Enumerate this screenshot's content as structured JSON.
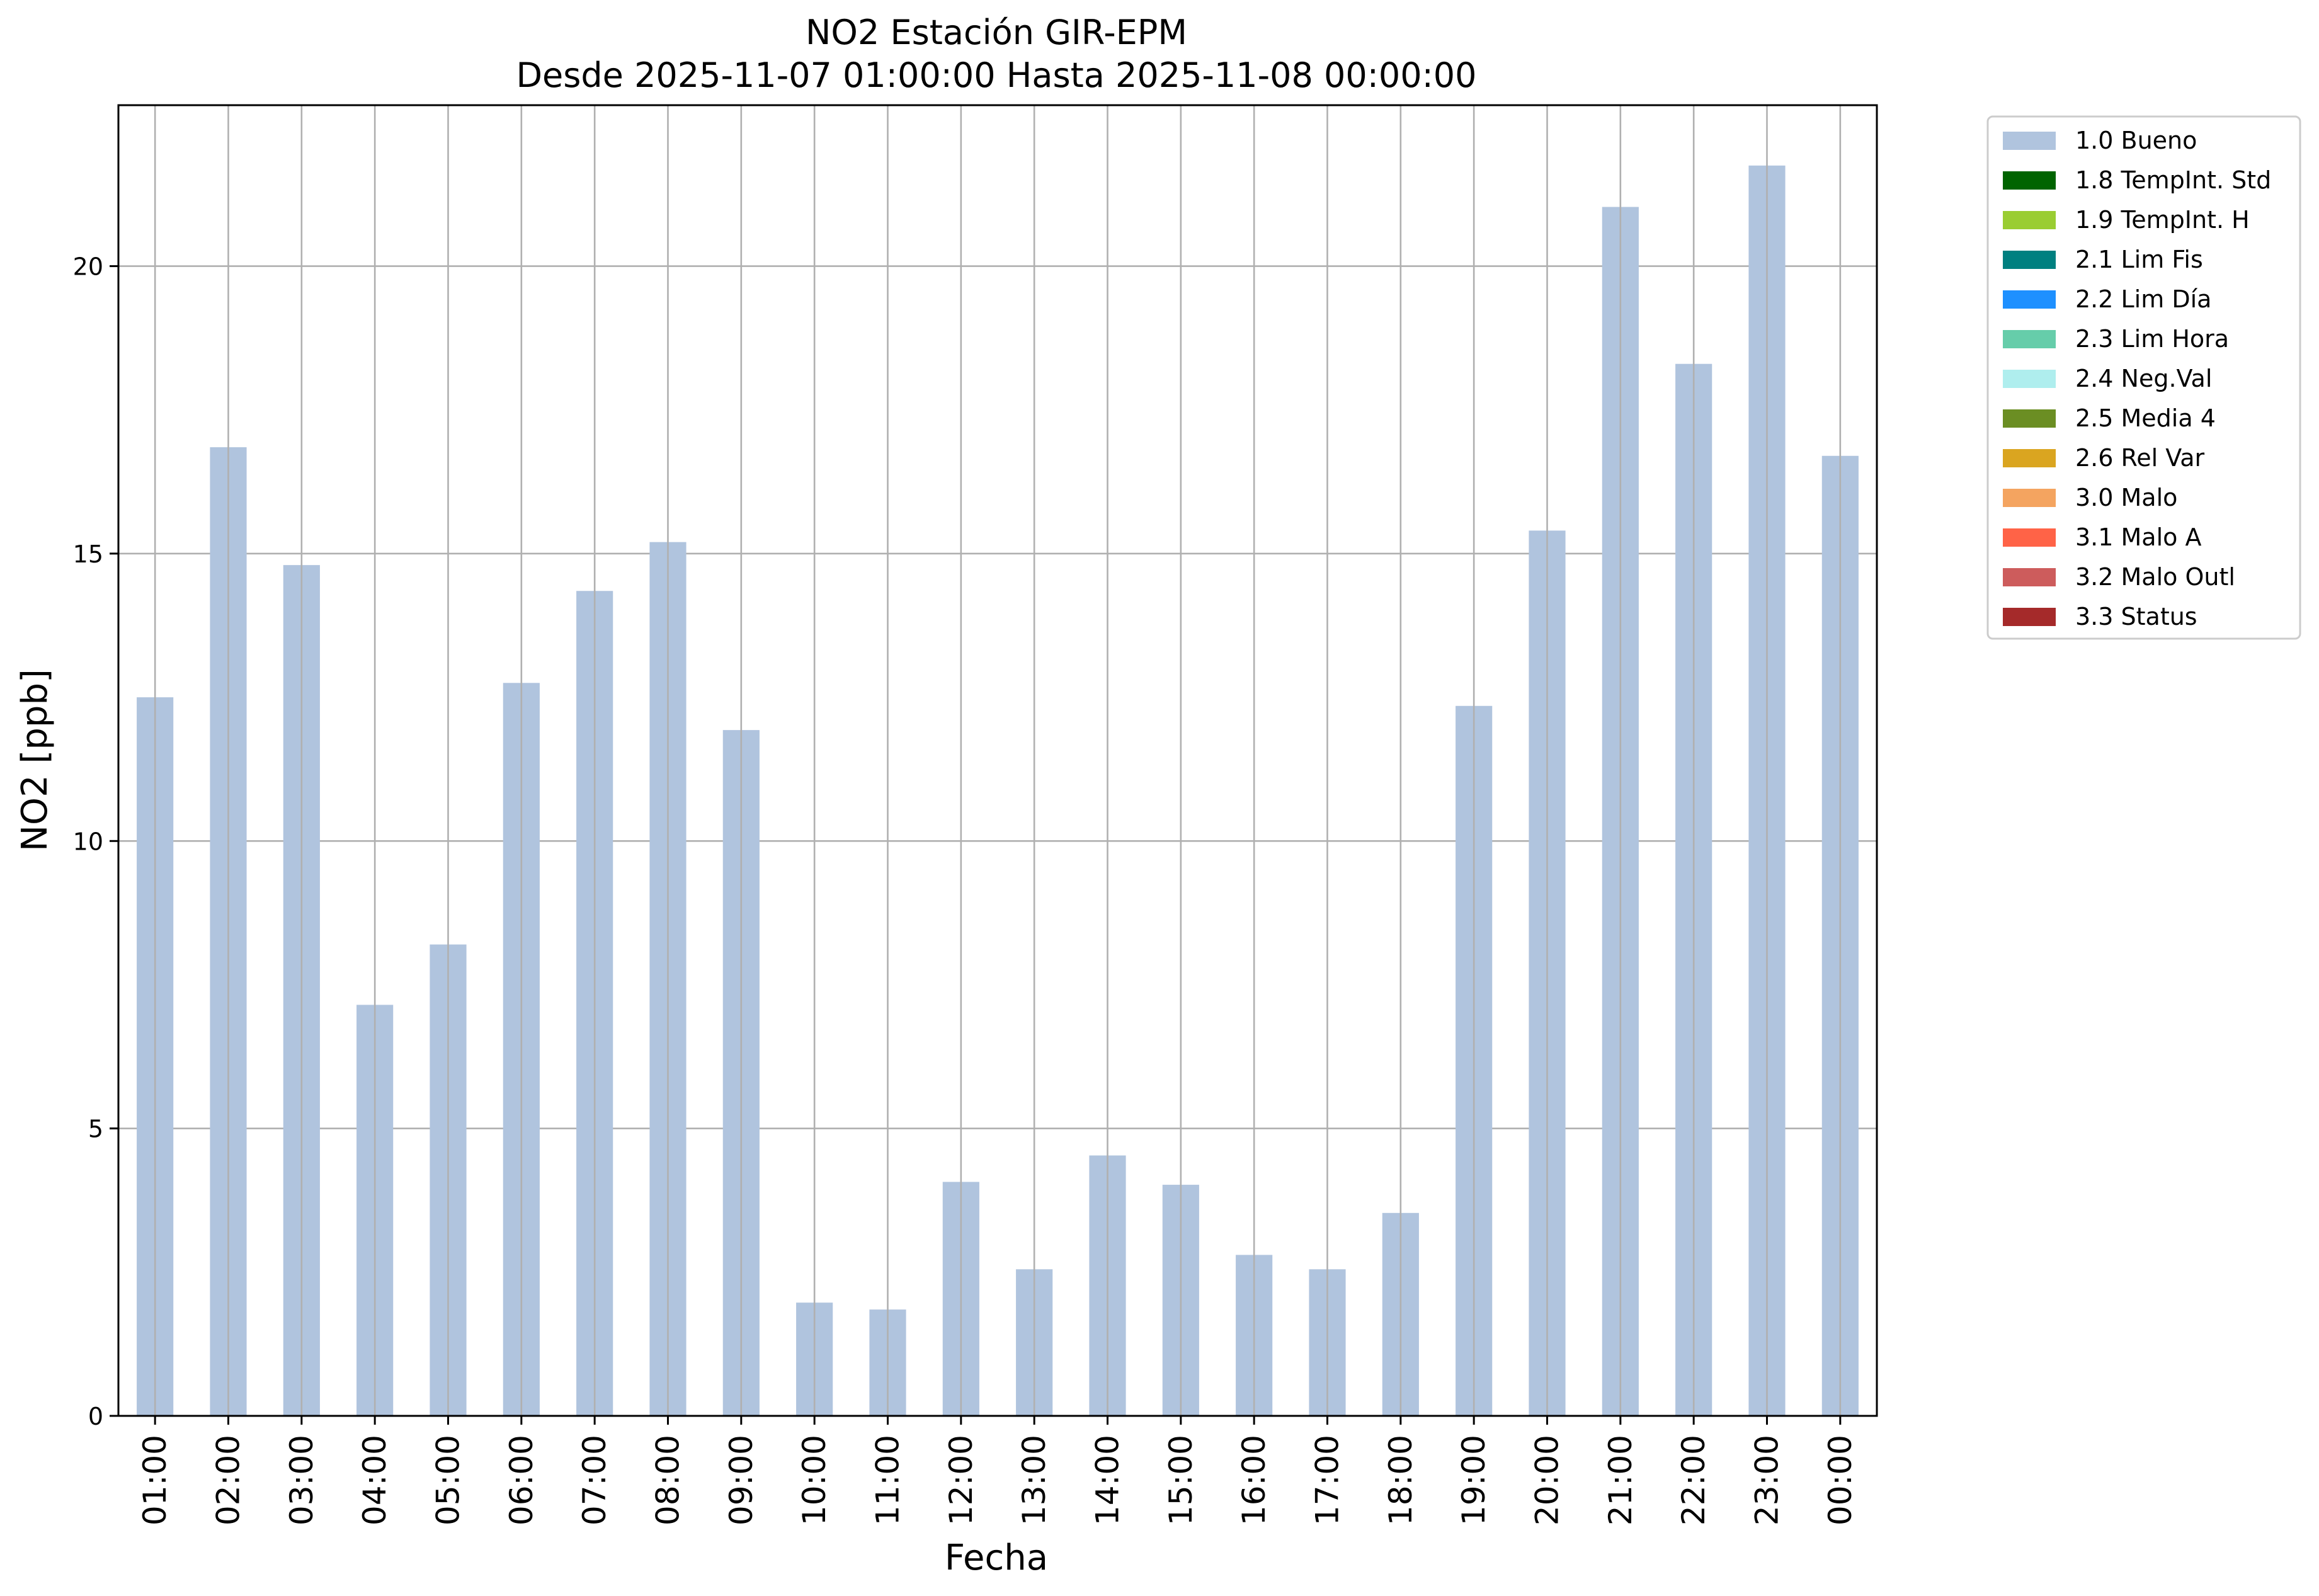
{
  "chart_data": {
    "type": "bar",
    "title": "NO2 Estación GIR-EPM",
    "subtitle": "Desde 2025-11-07 01:00:00 Hasta 2025-11-08 00:00:00",
    "xlabel": "Fecha",
    "ylabel": "NO2 [ppb]",
    "ylim": [
      0,
      22.8
    ],
    "yticks": [
      0,
      5,
      10,
      15,
      20
    ],
    "grid": true,
    "legend_position": "outside-top-right",
    "categories": [
      "01:00",
      "02:00",
      "03:00",
      "04:00",
      "05:00",
      "06:00",
      "07:00",
      "08:00",
      "09:00",
      "10:00",
      "11:00",
      "12:00",
      "13:00",
      "14:00",
      "15:00",
      "16:00",
      "17:00",
      "18:00",
      "19:00",
      "20:00",
      "21:00",
      "22:00",
      "23:00",
      "00:00"
    ],
    "series": [
      {
        "name": "1.0 Bueno",
        "color": "#b0c4de",
        "values": [
          12.5,
          16.85,
          14.8,
          7.15,
          8.2,
          12.75,
          14.35,
          15.2,
          11.93,
          1.97,
          1.85,
          4.07,
          2.55,
          4.53,
          4.02,
          2.8,
          2.55,
          3.53,
          12.35,
          15.4,
          21.03,
          18.3,
          21.75,
          16.7
        ]
      }
    ],
    "legend": [
      {
        "label": "1.0 Bueno",
        "color": "#b0c4de"
      },
      {
        "label": "1.8 TempInt. Std",
        "color": "#006400"
      },
      {
        "label": "1.9 TempInt. H",
        "color": "#9acd32"
      },
      {
        "label": "2.1 Lim Fis",
        "color": "#008080"
      },
      {
        "label": "2.2 Lim Día",
        "color": "#1e90ff"
      },
      {
        "label": "2.3 Lim Hora",
        "color": "#66cdaa"
      },
      {
        "label": "2.4 Neg.Val",
        "color": "#afeeee"
      },
      {
        "label": "2.5 Media 4",
        "color": "#6b8e23"
      },
      {
        "label": "2.6 Rel Var",
        "color": "#daa520"
      },
      {
        "label": "3.0 Malo",
        "color": "#f4a460"
      },
      {
        "label": "3.1 Malo A",
        "color": "#ff6347"
      },
      {
        "label": "3.2 Malo Outl",
        "color": "#cd5c5c"
      },
      {
        "label": "3.3 Status",
        "color": "#a52a2a"
      }
    ]
  }
}
